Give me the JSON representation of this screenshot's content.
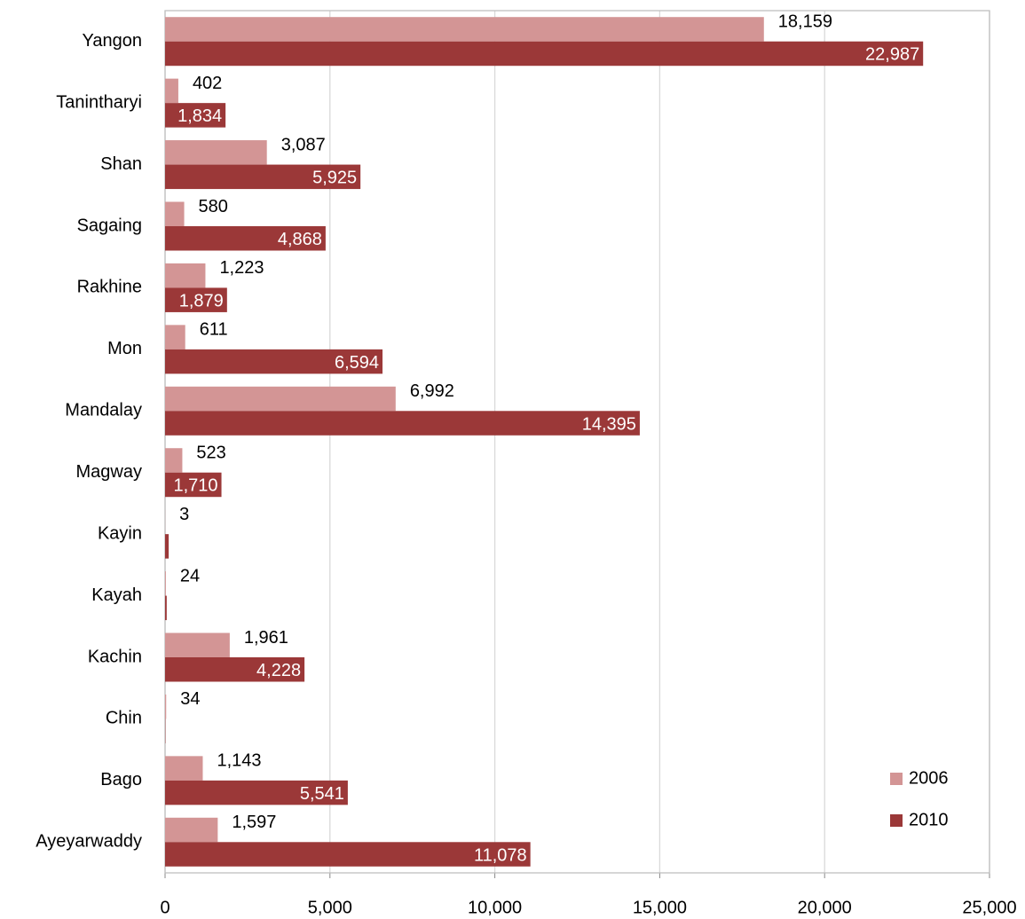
{
  "chart_data": {
    "type": "bar",
    "orientation": "horizontal",
    "categories": [
      "Yangon",
      "Tanintharyi",
      "Shan",
      "Sagaing",
      "Rakhine",
      "Mon",
      "Mandalay",
      "Magway",
      "Kayin",
      "Kayah",
      "Kachin",
      "Chin",
      "Bago",
      "Ayeyarwaddy"
    ],
    "series": [
      {
        "name": "2006",
        "color": "#d39595",
        "values": [
          18159,
          402,
          3087,
          580,
          1223,
          611,
          6992,
          523,
          3,
          24,
          1961,
          34,
          1143,
          1597
        ],
        "value_labels": [
          "18,159",
          "402",
          "3,087",
          "580",
          "1,223",
          "611",
          "6,992",
          "523",
          "3",
          "24",
          "1,961",
          "34",
          "1,143",
          "1,597"
        ]
      },
      {
        "name": "2010",
        "color": "#9b3838",
        "values": [
          22987,
          1834,
          5925,
          4868,
          1879,
          6594,
          14395,
          1710,
          110,
          50,
          4228,
          10,
          5541,
          11078
        ],
        "value_labels": [
          "22,987",
          "1,834",
          "5,925",
          "4,868",
          "1,879",
          "6,594",
          "14,395",
          "1,710",
          null,
          null,
          "4,228",
          null,
          "5,541",
          "11,078"
        ]
      }
    ],
    "xlim": [
      0,
      25000
    ],
    "xticks": [
      0,
      {
        "value": 5000,
        "label": "5,000"
      },
      {
        "value": 10000,
        "label": "10,000"
      },
      {
        "value": 15000,
        "label": "15,000"
      },
      {
        "value": 20000,
        "label": "20,000"
      },
      {
        "value": 25000,
        "label": "25,000"
      }
    ],
    "grid": true,
    "legend": "bottom-right"
  }
}
